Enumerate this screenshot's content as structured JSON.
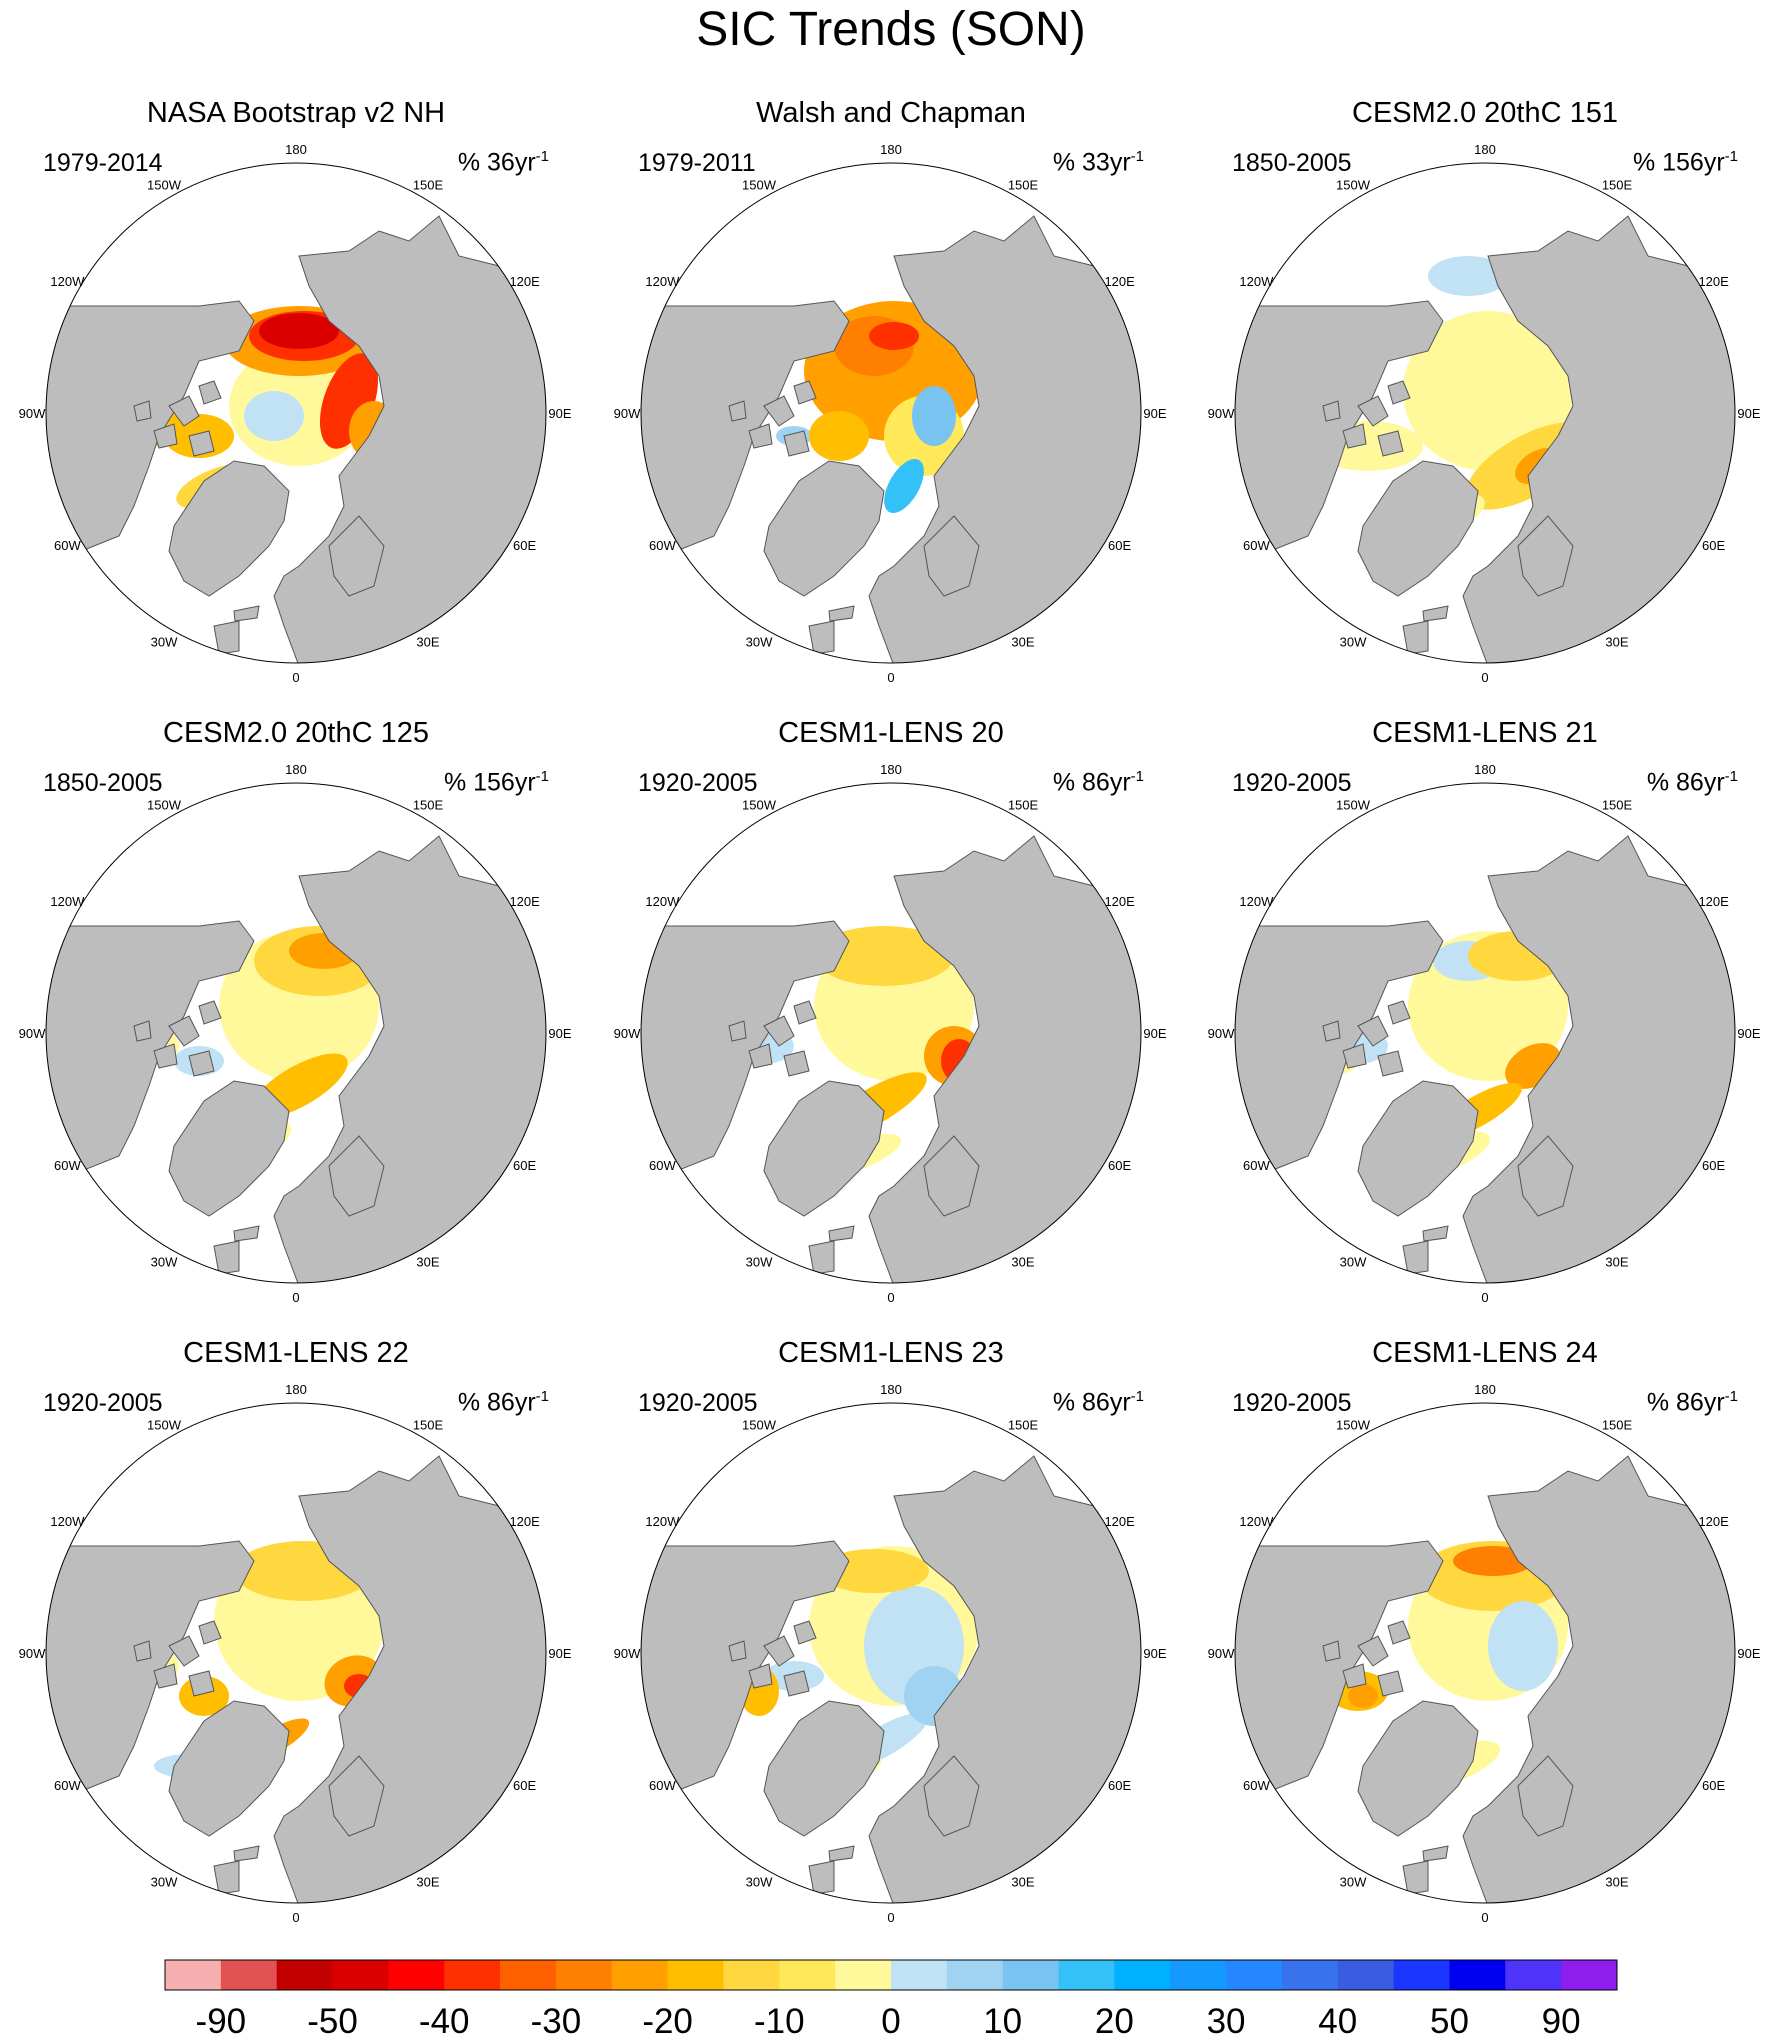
{
  "title": "SIC Trends (SON)",
  "longitude_labels": [
    "180",
    "150E",
    "120E",
    "90E",
    "60E",
    "30E",
    "0",
    "30W",
    "60W",
    "90W",
    "120W",
    "150W"
  ],
  "panels": [
    {
      "title": "NASA Bootstrap v2 NH",
      "period": "1979-2014",
      "units_prefix": "% ",
      "units_value": "36yr",
      "units_exp": "-1"
    },
    {
      "title": "Walsh and Chapman",
      "period": "1979-2011",
      "units_prefix": "% ",
      "units_value": "33yr",
      "units_exp": "-1"
    },
    {
      "title": "CESM2.0 20thC 151",
      "period": "1850-2005",
      "units_prefix": "% ",
      "units_value": "156yr",
      "units_exp": "-1"
    },
    {
      "title": "CESM2.0 20thC 125",
      "period": "1850-2005",
      "units_prefix": "% ",
      "units_value": "156yr",
      "units_exp": "-1"
    },
    {
      "title": "CESM1-LENS 20",
      "period": "1920-2005",
      "units_prefix": "% ",
      "units_value": "86yr",
      "units_exp": "-1"
    },
    {
      "title": "CESM1-LENS 21",
      "period": "1920-2005",
      "units_prefix": "% ",
      "units_value": "86yr",
      "units_exp": "-1"
    },
    {
      "title": "CESM1-LENS 22",
      "period": "1920-2005",
      "units_prefix": "% ",
      "units_value": "86yr",
      "units_exp": "-1"
    },
    {
      "title": "CESM1-LENS 23",
      "period": "1920-2005",
      "units_prefix": "% ",
      "units_value": "86yr",
      "units_exp": "-1"
    },
    {
      "title": "CESM1-LENS 24",
      "period": "1920-2005",
      "units_prefix": "% ",
      "units_value": "86yr",
      "units_exp": "-1"
    }
  ],
  "colorbar": {
    "colors": [
      "#f7b0b0",
      "#e35252",
      "#c30000",
      "#db0000",
      "#ff0000",
      "#ff3000",
      "#ff6000",
      "#ff8000",
      "#ffa000",
      "#ffbf00",
      "#ffd840",
      "#ffe95a",
      "#fff99b",
      "#c0e2f4",
      "#9fd3f1",
      "#79c3f1",
      "#33c1f8",
      "#00b1ff",
      "#1499ff",
      "#2686ff",
      "#3872ed",
      "#3a5ce3",
      "#1a36ff",
      "#0000f0",
      "#5033f8",
      "#8d1eee"
    ],
    "labels": [
      "-90",
      "-50",
      "-40",
      "-30",
      "-20",
      "-10",
      "0",
      "10",
      "20",
      "30",
      "40",
      "50",
      "90"
    ]
  },
  "colors": {
    "land": "#bdbdbd",
    "ocean": "#ffffff"
  }
}
